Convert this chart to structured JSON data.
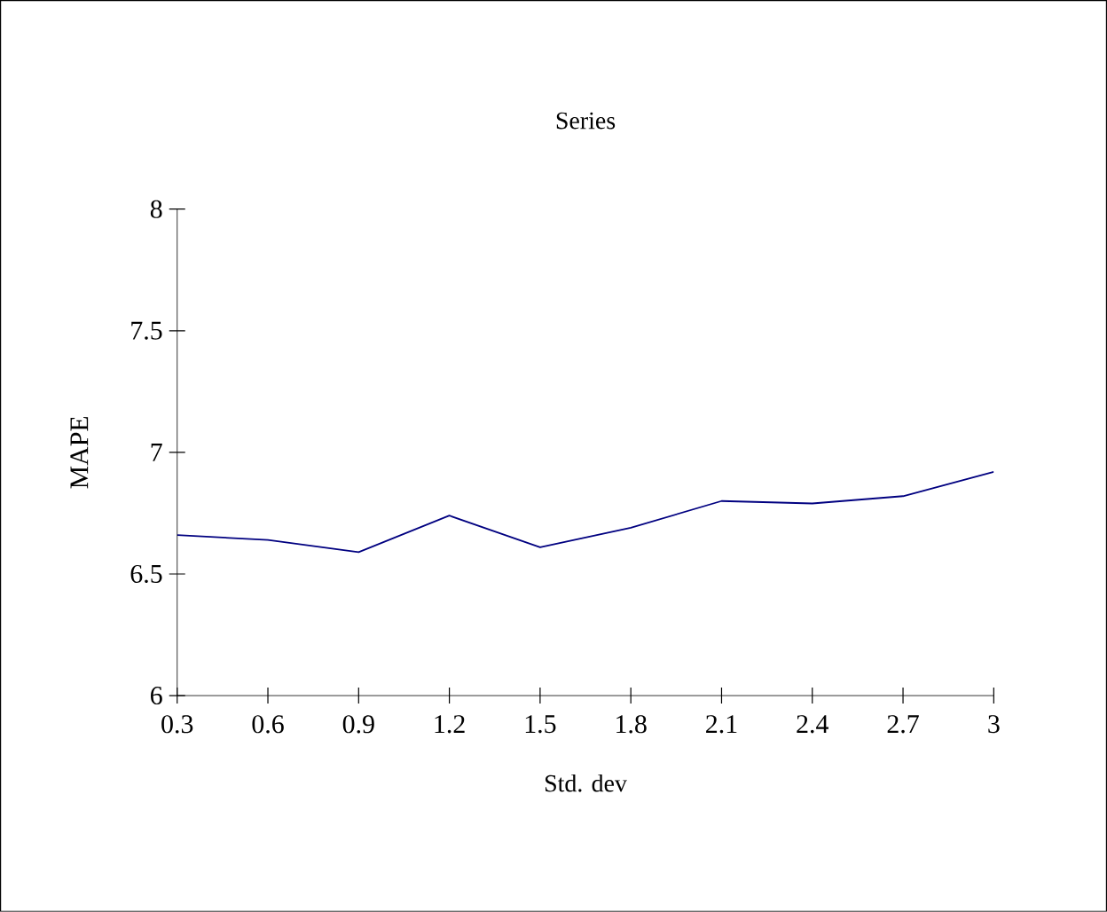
{
  "chart_data": {
    "type": "line",
    "title": "Series",
    "xlabel": "Std. dev",
    "ylabel": "MAPE",
    "x": [
      0.3,
      0.6,
      0.9,
      1.2,
      1.5,
      1.8,
      2.1,
      2.4,
      2.7,
      3
    ],
    "series": [
      {
        "color": "#000080",
        "values": [
          6.66,
          6.64,
          6.59,
          6.74,
          6.61,
          6.69,
          6.8,
          6.79,
          6.82,
          6.92
        ]
      }
    ],
    "xlim": [
      0.3,
      3
    ],
    "xticks": [
      0.3,
      0.6,
      0.9,
      1.2,
      1.5,
      1.8,
      2.1,
      2.4,
      2.7,
      3
    ],
    "ylim": [
      6,
      8
    ],
    "yticks": [
      6,
      6.5,
      7,
      7.5,
      8
    ]
  }
}
